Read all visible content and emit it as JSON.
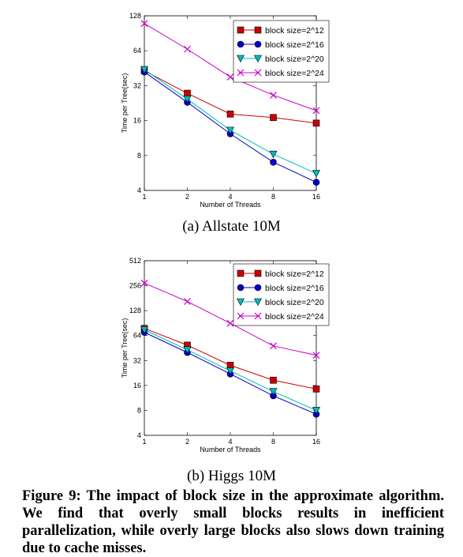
{
  "chart_data": [
    {
      "type": "line",
      "x": [
        1,
        2,
        4,
        8,
        16
      ],
      "xlabel": "Number of Threads",
      "ylabel": "Time per Tree(sec)",
      "yscale": "log2",
      "ylim": [
        4,
        128
      ],
      "yticks": [
        4,
        8,
        16,
        32,
        64,
        128
      ],
      "legend_position": "top-right",
      "series": [
        {
          "name": "block size=2^12",
          "color": "#cc0000",
          "marker": "square",
          "values": [
            43,
            27.5,
            18.2,
            17,
            15.2
          ]
        },
        {
          "name": "block size=2^16",
          "color": "#0000cc",
          "marker": "circle",
          "values": [
            42,
            23,
            12.3,
            7,
            4.7
          ]
        },
        {
          "name": "block size=2^20",
          "color": "#00bbbb",
          "marker": "triangle-down",
          "values": [
            44,
            24.5,
            13.2,
            8.2,
            5.6
          ]
        },
        {
          "name": "block size=2^24",
          "color": "#cc00cc",
          "marker": "x",
          "values": [
            110,
            66,
            38,
            26.5,
            19.5
          ]
        }
      ]
    },
    {
      "type": "line",
      "x": [
        1,
        2,
        4,
        8,
        16
      ],
      "xlabel": "Number of Threads",
      "ylabel": "Time per Tree(sec)",
      "yscale": "log2",
      "ylim": [
        4,
        512
      ],
      "yticks": [
        4,
        8,
        16,
        32,
        64,
        128,
        256,
        512
      ],
      "legend_position": "top-right",
      "series": [
        {
          "name": "block size=2^12",
          "color": "#cc0000",
          "marker": "square",
          "values": [
            78,
            49,
            28,
            18.5,
            14.5
          ]
        },
        {
          "name": "block size=2^16",
          "color": "#0000cc",
          "marker": "circle",
          "values": [
            70,
            40,
            22,
            12,
            7.2
          ]
        },
        {
          "name": "block size=2^20",
          "color": "#00bbbb",
          "marker": "triangle-down",
          "values": [
            75,
            43,
            24,
            13.5,
            8
          ]
        },
        {
          "name": "block size=2^24",
          "color": "#cc00cc",
          "marker": "x",
          "values": [
            275,
            165,
            90,
            48,
            37
          ]
        }
      ]
    }
  ],
  "subcaptions": {
    "a": "(a) Allstate 10M",
    "b": "(b) Higgs 10M"
  },
  "caption": "Figure 9:  The impact of block size in the approximate algorithm. We find that overly small blocks results in inefficient parallelization, while overly large blocks also slows down training due to cache misses."
}
